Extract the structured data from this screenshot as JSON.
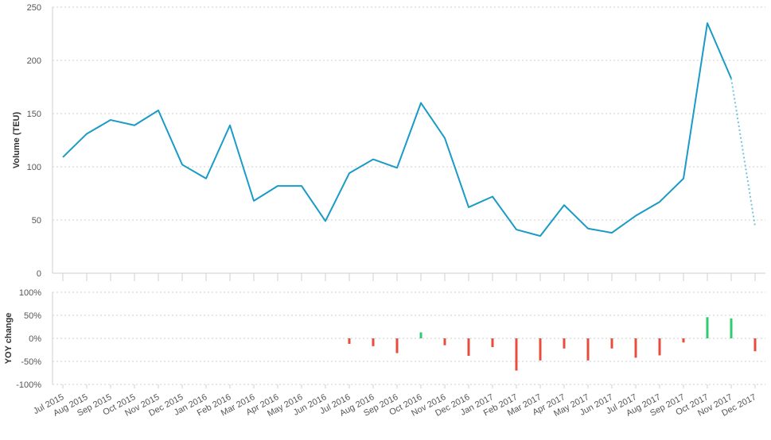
{
  "chart_data": [
    {
      "type": "line",
      "ylabel": "Volume (TEU)",
      "ylim": [
        0,
        250
      ],
      "yticks": [
        0,
        50,
        100,
        150,
        200,
        250
      ],
      "grid": true,
      "line_color": "#1a9bc7",
      "categories": [
        "Jul 2015",
        "Aug 2015",
        "Sep 2015",
        "Oct 2015",
        "Nov 2015",
        "Dec 2015",
        "Jan 2016",
        "Feb 2016",
        "Mar 2016",
        "Apr 2016",
        "May 2016",
        "Jun 2016",
        "Jul 2016",
        "Aug 2016",
        "Sep 2016",
        "Oct 2016",
        "Nov 2016",
        "Dec 2016",
        "Jan 2017",
        "Feb 2017",
        "Mar 2017",
        "Apr 2017",
        "May 2017",
        "Jun 2017",
        "Jul 2017",
        "Aug 2017",
        "Sep 2017",
        "Oct 2017",
        "Nov 2017",
        "Dec 2017"
      ],
      "values": [
        109,
        131,
        144,
        139,
        153,
        102,
        89,
        139,
        68,
        82,
        82,
        49,
        94,
        107,
        99,
        160,
        127,
        62,
        72,
        41,
        35,
        64,
        42,
        38,
        54,
        67,
        89,
        235,
        183,
        44
      ],
      "dotted_last_segment": true
    },
    {
      "type": "bar",
      "ylabel": "YOY change",
      "ylim": [
        -100,
        100
      ],
      "yticks": [
        100,
        50,
        0,
        -50,
        -100
      ],
      "ytick_labels": [
        "100%",
        "50%",
        "0%",
        "-50%",
        "-100%"
      ],
      "grid": true,
      "positive_color": "#2ecc71",
      "negative_color": "#e74c3c",
      "categories": [
        "Jul 2015",
        "Aug 2015",
        "Sep 2015",
        "Oct 2015",
        "Nov 2015",
        "Dec 2015",
        "Jan 2016",
        "Feb 2016",
        "Mar 2016",
        "Apr 2016",
        "May 2016",
        "Jun 2016",
        "Jul 2016",
        "Aug 2016",
        "Sep 2016",
        "Oct 2016",
        "Nov 2016",
        "Dec 2016",
        "Jan 2017",
        "Feb 2017",
        "Mar 2017",
        "Apr 2017",
        "May 2017",
        "Jun 2017",
        "Jul 2017",
        "Aug 2017",
        "Sep 2017",
        "Oct 2017",
        "Nov 2017",
        "Dec 2017"
      ],
      "values": [
        null,
        null,
        null,
        null,
        null,
        null,
        null,
        null,
        null,
        null,
        null,
        null,
        -12,
        -17,
        -32,
        13,
        -15,
        -38,
        -19,
        -70,
        -48,
        -22,
        -48,
        -22,
        -42,
        -37,
        -9,
        46,
        43,
        -28
      ]
    }
  ]
}
